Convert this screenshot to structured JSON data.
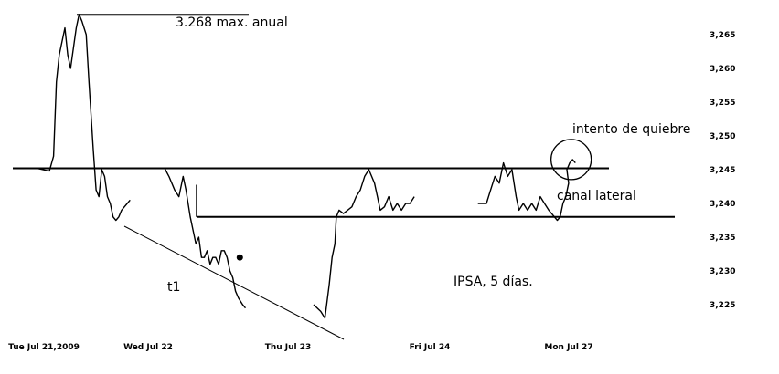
{
  "chart_data": {
    "type": "line",
    "title": "",
    "xlabel": "",
    "ylabel": "",
    "ylim": [
      3221,
      3269
    ],
    "yticks": [
      "3,265",
      "3,260",
      "3,255",
      "3,250",
      "3,245",
      "3,240",
      "3,235",
      "3,230",
      "3,225"
    ],
    "ytick_values": [
      3265,
      3260,
      3255,
      3250,
      3245,
      3240,
      3235,
      3230,
      3225
    ],
    "x_labels": [
      "Tue Jul 21,2009",
      "Wed Jul 22",
      "Thu Jul 23",
      "Fri Jul 24",
      "Mon Jul 27"
    ],
    "grid": false,
    "annotations": {
      "max_label": "3.268 max. anual",
      "break_label": "intento de quiebre",
      "channel_label": "canal lateral",
      "trend_label": "t1",
      "index_label": "IPSA, 5 días."
    },
    "levels": {
      "resistance": 3245.2,
      "support": 3238.0,
      "annual_max": 3268
    },
    "series": [
      {
        "values": [
          [
            0.0,
            3245.2
          ],
          [
            0.09,
            3244.8
          ],
          [
            0.1,
            3245.5
          ],
          [
            0.12,
            3247
          ],
          [
            0.14,
            3258
          ],
          [
            0.16,
            3262
          ],
          [
            0.18,
            3264
          ],
          [
            0.2,
            3266
          ],
          [
            0.22,
            3262
          ],
          [
            0.24,
            3260
          ],
          [
            0.26,
            3263
          ],
          [
            0.28,
            3266
          ],
          [
            0.3,
            3268
          ],
          [
            0.32,
            3267
          ],
          [
            0.35,
            3265
          ],
          [
            0.37,
            3258
          ],
          [
            0.4,
            3248
          ],
          [
            0.42,
            3242
          ],
          [
            0.44,
            3241
          ],
          [
            0.46,
            3245
          ],
          [
            0.48,
            3244
          ],
          [
            0.5,
            3241
          ],
          [
            0.52,
            3240
          ],
          [
            0.54,
            3238
          ],
          [
            0.56,
            3237.5
          ],
          [
            0.58,
            3238
          ],
          [
            0.6,
            3239
          ],
          [
            0.62,
            3239.5
          ],
          [
            0.64,
            3240
          ],
          [
            0.66,
            3240.5
          ]
        ]
      },
      {
        "values": [
          [
            1.13,
            3245.2
          ],
          [
            1.16,
            3244
          ],
          [
            1.2,
            3242
          ],
          [
            1.23,
            3241
          ],
          [
            1.26,
            3244
          ],
          [
            1.28,
            3242
          ],
          [
            1.31,
            3238
          ],
          [
            1.33,
            3236
          ],
          [
            1.35,
            3234
          ],
          [
            1.37,
            3235
          ],
          [
            1.39,
            3232
          ],
          [
            1.41,
            3232
          ],
          [
            1.43,
            3233
          ],
          [
            1.45,
            3231
          ],
          [
            1.47,
            3232
          ],
          [
            1.49,
            3232
          ],
          [
            1.51,
            3231
          ],
          [
            1.53,
            3233
          ],
          [
            1.55,
            3233
          ],
          [
            1.57,
            3232
          ],
          [
            1.59,
            3230
          ],
          [
            1.61,
            3229
          ],
          [
            1.63,
            3227
          ],
          [
            1.65,
            3226
          ],
          [
            1.68,
            3225
          ],
          [
            1.7,
            3224.5
          ]
        ]
      },
      {
        "values": [
          [
            2.2,
            3225
          ],
          [
            2.25,
            3224
          ],
          [
            2.28,
            3223
          ],
          [
            2.31,
            3228
          ],
          [
            2.33,
            3232
          ],
          [
            2.35,
            3234
          ],
          [
            2.36,
            3238
          ],
          [
            2.38,
            3239
          ],
          [
            2.41,
            3238.5
          ],
          [
            2.44,
            3239
          ],
          [
            2.47,
            3239.5
          ],
          [
            2.5,
            3241
          ],
          [
            2.53,
            3242
          ],
          [
            2.56,
            3244
          ],
          [
            2.59,
            3245
          ],
          [
            2.61,
            3244
          ],
          [
            2.63,
            3243
          ],
          [
            2.65,
            3241
          ],
          [
            2.67,
            3239
          ],
          [
            2.7,
            3239.5
          ],
          [
            2.73,
            3241
          ],
          [
            2.76,
            3239
          ],
          [
            2.79,
            3240
          ],
          [
            2.82,
            3239
          ],
          [
            2.85,
            3240
          ],
          [
            2.88,
            3240
          ],
          [
            2.91,
            3241
          ]
        ]
      },
      {
        "values": [
          [
            3.34,
            3240
          ],
          [
            3.4,
            3240
          ],
          [
            3.43,
            3242
          ],
          [
            3.46,
            3244
          ],
          [
            3.49,
            3243
          ],
          [
            3.52,
            3246
          ],
          [
            3.55,
            3244
          ],
          [
            3.58,
            3245
          ],
          [
            3.61,
            3241
          ],
          [
            3.63,
            3239
          ],
          [
            3.66,
            3240
          ],
          [
            3.69,
            3239
          ],
          [
            3.72,
            3240
          ],
          [
            3.75,
            3239
          ],
          [
            3.78,
            3241
          ],
          [
            3.81,
            3240
          ],
          [
            3.84,
            3239
          ],
          [
            3.86,
            3238.5
          ],
          [
            3.88,
            3238
          ],
          [
            3.9,
            3237.5
          ],
          [
            3.92,
            3238
          ],
          [
            3.94,
            3240
          ],
          [
            3.96,
            3241
          ],
          [
            3.98,
            3243
          ],
          [
            4.0,
            3245
          ],
          [
            4.02,
            3246
          ],
          [
            4.04,
            3246.5
          ],
          [
            4.06,
            3246
          ]
        ]
      }
    ],
    "point_marker": [
      1.66,
      3232
    ],
    "circle_center": [
      4.03,
      3246.5
    ]
  }
}
